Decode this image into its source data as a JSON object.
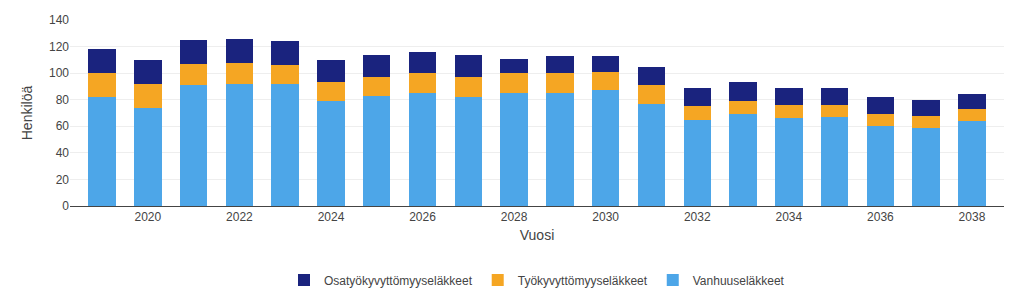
{
  "chart_data": {
    "type": "bar",
    "stacked": true,
    "x": [
      2019,
      2020,
      2021,
      2022,
      2023,
      2024,
      2025,
      2026,
      2027,
      2028,
      2029,
      2030,
      2031,
      2032,
      2033,
      2034,
      2035,
      2036,
      2037,
      2038
    ],
    "series": [
      {
        "name": "Vanhuuseläkkeet",
        "color": "#4da6e8",
        "values": [
          82,
          74,
          91,
          92,
          92,
          79,
          83,
          85,
          82,
          85,
          85,
          87,
          77,
          65,
          69,
          66,
          67,
          60,
          59,
          64
        ]
      },
      {
        "name": "Työkyvyttömyyseläkkeet",
        "color": "#f5a623",
        "values": [
          18,
          18,
          16,
          16,
          14,
          14,
          14,
          15,
          15,
          15,
          15,
          14,
          14,
          10,
          10,
          10,
          9,
          9,
          9,
          9
        ]
      },
      {
        "name": "Osatyökyvyttömyyseläkkeet",
        "color": "#1a237e",
        "values": [
          18,
          18,
          18,
          18,
          18,
          17,
          17,
          16,
          17,
          11,
          13,
          12,
          14,
          14,
          14,
          13,
          13,
          13,
          12,
          11
        ]
      }
    ],
    "x_label": "Vuosi",
    "y_label": "Henkilöä",
    "xlim": [
      2018.3,
      2038.7
    ],
    "xticks": [
      2020,
      2022,
      2024,
      2026,
      2028,
      2030,
      2032,
      2034,
      2036,
      2038
    ],
    "ylim": [
      0,
      140
    ],
    "yticks": [
      0,
      20,
      40,
      60,
      80,
      100,
      120,
      140
    ],
    "grid": true,
    "legend": "bottom"
  }
}
